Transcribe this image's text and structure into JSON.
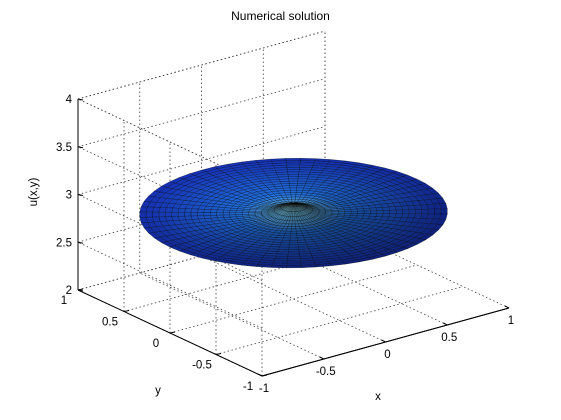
{
  "chart_data": {
    "type": "surface",
    "title": "Numerical solution",
    "xlabel": "x",
    "ylabel": "y",
    "zlabel": "u(x,y)",
    "xlim": [
      -1,
      1
    ],
    "ylim": [
      -1,
      1
    ],
    "zlim": [
      2,
      4
    ],
    "x_ticks": [
      "-1",
      "-0.5",
      "0",
      "0.5",
      "1"
    ],
    "y_ticks": [
      "-1",
      "-0.5",
      "0",
      "0.5",
      "1"
    ],
    "z_ticks": [
      "2",
      "2.5",
      "3",
      "3.5",
      "4"
    ],
    "domain": "unit disk (polar mesh)",
    "surface_level": 2.9,
    "center_peak": 3.0,
    "colormap": "jet",
    "grid": true,
    "box": true,
    "colors": {
      "surface_outer": "#1530b8",
      "surface_mid": "#1f6fe0",
      "surface_center": "#9ff3e0",
      "mesh": "#000000",
      "grid": "#404040"
    }
  }
}
